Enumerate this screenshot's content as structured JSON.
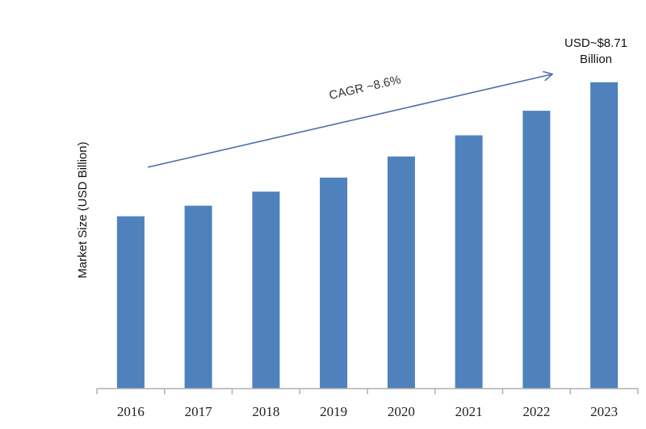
{
  "chart_data": {
    "type": "bar",
    "categories": [
      "2016",
      "2017",
      "2018",
      "2019",
      "2020",
      "2021",
      "2022",
      "2023"
    ],
    "values": [
      4.9,
      5.2,
      5.6,
      6.0,
      6.6,
      7.2,
      7.9,
      8.71
    ],
    "ylim": [
      0,
      9.9
    ],
    "xlabel": "",
    "ylabel": "Market Size (USD Billion)",
    "annotation_value_line1": "USD~$8.71",
    "annotation_value_line2": "Billion",
    "cagr_label": "CAGR ~8.6%",
    "bar_color": "#4f81bd",
    "arrow_color": "#4a6fa5",
    "grid": false,
    "legend": "none"
  }
}
